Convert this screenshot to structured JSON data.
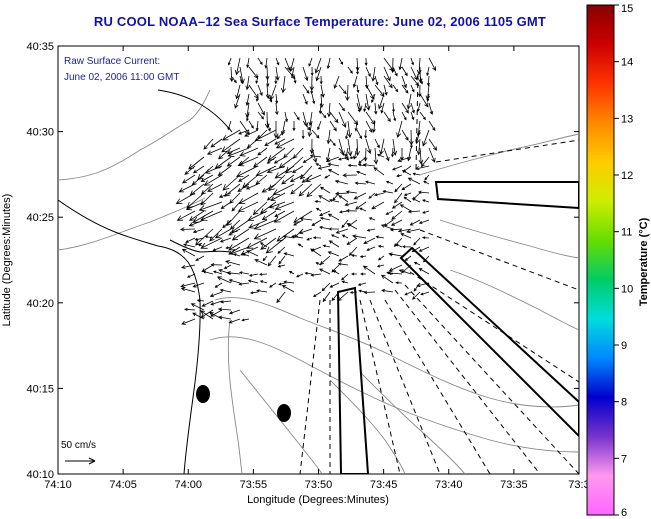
{
  "title": "RU COOL  NOAA–12  Sea Surface Temperature:  June 02, 2006 1105 GMT",
  "annotation": {
    "line1": "Raw Surface Current:",
    "line2": "June 02, 2006 11:00 GMT"
  },
  "scale": {
    "label": "50 cm/s"
  },
  "x_axis": {
    "label": "Longitude (Degrees:Minutes)",
    "ticks": [
      "74:10",
      "74:05",
      "74:00",
      "73:55",
      "73:50",
      "73:45",
      "73:40",
      "73:35",
      "73:3"
    ]
  },
  "y_axis": {
    "label": "Latitude (Degrees:Minutes)",
    "ticks": [
      "40:35",
      "40:30",
      "40:25",
      "40:20",
      "40:15",
      "40:10"
    ]
  },
  "colorbar": {
    "label": "Temperature (°C)",
    "ticks": [
      "15",
      "14",
      "13",
      "12",
      "11",
      "10",
      "9",
      "8",
      "7",
      "6"
    ],
    "stops": [
      "#ff66ff",
      "#ff99ee",
      "#7733cc",
      "#0000cc",
      "#0088ff",
      "#00dddd",
      "#00cc66",
      "#66dd00",
      "#ccee00",
      "#ffcc00",
      "#ff8800",
      "#ff3300",
      "#cc0000",
      "#880000"
    ]
  }
}
